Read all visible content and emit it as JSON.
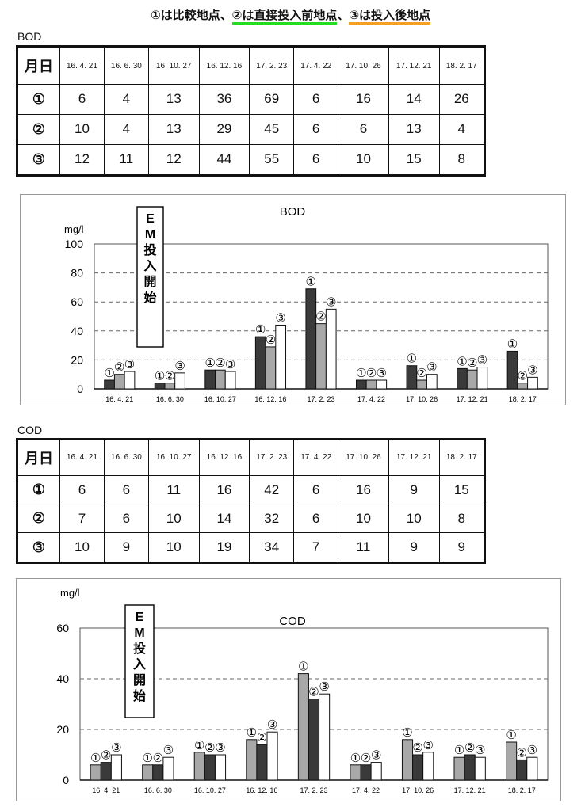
{
  "heading": {
    "part1": "①は比較地点、",
    "part2": "②は直接投入前地点",
    "sep": "、",
    "part3": "③は投入後地点"
  },
  "colors": {
    "underline_2": "#22dd22",
    "underline_3": "#f5a020",
    "dark_bar": "#3a3a3a",
    "light_bar": "#a8a8a8",
    "white_bar": "#ffffff"
  },
  "bod_table": {
    "label": "BOD",
    "corner": "月日",
    "dates": [
      "16. 4. 21",
      "16. 6. 30",
      "16. 10. 27",
      "16. 12. 16",
      "17. 2. 23",
      "17. 4. 22",
      "17. 10. 26",
      "17. 12. 21",
      "18. 2. 17"
    ],
    "rows": [
      {
        "label": "①",
        "values": [
          "6",
          "4",
          "13",
          "36",
          "69",
          "6",
          "16",
          "14",
          "26"
        ]
      },
      {
        "label": "②",
        "values": [
          "10",
          "4",
          "13",
          "29",
          "45",
          "6",
          "6",
          "13",
          "4"
        ]
      },
      {
        "label": "③",
        "values": [
          "12",
          "11",
          "12",
          "44",
          "55",
          "6",
          "10",
          "15",
          "8"
        ]
      }
    ]
  },
  "cod_table": {
    "label": "COD",
    "corner": "月日",
    "dates": [
      "16. 4. 21",
      "16. 6. 30",
      "16. 10. 27",
      "16. 12. 16",
      "17. 2. 23",
      "17. 4. 22",
      "17. 10. 26",
      "17. 12. 21",
      "18. 2. 17"
    ],
    "rows": [
      {
        "label": "①",
        "values": [
          "6",
          "6",
          "11",
          "16",
          "42",
          "6",
          "16",
          "9",
          "15"
        ]
      },
      {
        "label": "②",
        "values": [
          "7",
          "6",
          "10",
          "14",
          "32",
          "6",
          "10",
          "10",
          "8"
        ]
      },
      {
        "label": "③",
        "values": [
          "10",
          "9",
          "10",
          "19",
          "34",
          "7",
          "11",
          "9",
          "9"
        ]
      }
    ]
  },
  "chart_data": [
    {
      "type": "bar",
      "title": "BOD",
      "ylabel": "mg/l",
      "ylim": [
        0,
        100
      ],
      "yticks": [
        "0",
        "20",
        "40",
        "60",
        "80",
        "100"
      ],
      "grid": true,
      "annotation": "EM投入開始",
      "annotation_chars": [
        "E",
        "M",
        "投",
        "入",
        "開",
        "始"
      ],
      "categories": [
        "16. 4. 21",
        "16. 6. 30",
        "16. 10. 27",
        "16. 12. 16",
        "17. 2. 23",
        "17. 4. 22",
        "17. 10. 26",
        "17. 12. 21",
        "18. 2. 17"
      ],
      "series": [
        {
          "name": "①",
          "color": "#3a3a3a",
          "values": [
            6,
            4,
            13,
            36,
            69,
            6,
            16,
            14,
            26
          ]
        },
        {
          "name": "②",
          "color": "#a8a8a8",
          "values": [
            10,
            4,
            13,
            29,
            45,
            6,
            6,
            13,
            4
          ]
        },
        {
          "name": "③",
          "color": "#ffffff",
          "values": [
            12,
            11,
            12,
            44,
            55,
            6,
            10,
            15,
            8
          ]
        }
      ]
    },
    {
      "type": "bar",
      "title": "COD",
      "ylabel": "mg/l",
      "ylim": [
        0,
        60
      ],
      "yticks": [
        "0",
        "20",
        "40",
        "60"
      ],
      "grid": true,
      "annotation": "EM投入開始",
      "annotation_chars": [
        "E",
        "M",
        "投",
        "入",
        "開",
        "始"
      ],
      "categories": [
        "16. 4. 21",
        "16. 6. 30",
        "16. 10. 27",
        "16. 12. 16",
        "17. 2. 23",
        "17. 4. 22",
        "17. 10. 26",
        "17. 12. 21",
        "18. 2. 17"
      ],
      "series": [
        {
          "name": "①",
          "color": "#a8a8a8",
          "values": [
            6,
            6,
            11,
            16,
            42,
            6,
            16,
            9,
            15
          ]
        },
        {
          "name": "②",
          "color": "#3a3a3a",
          "values": [
            7,
            6,
            10,
            14,
            32,
            6,
            10,
            10,
            8
          ]
        },
        {
          "name": "③",
          "color": "#ffffff",
          "values": [
            10,
            9,
            10,
            19,
            34,
            7,
            11,
            9,
            9
          ]
        }
      ]
    }
  ]
}
